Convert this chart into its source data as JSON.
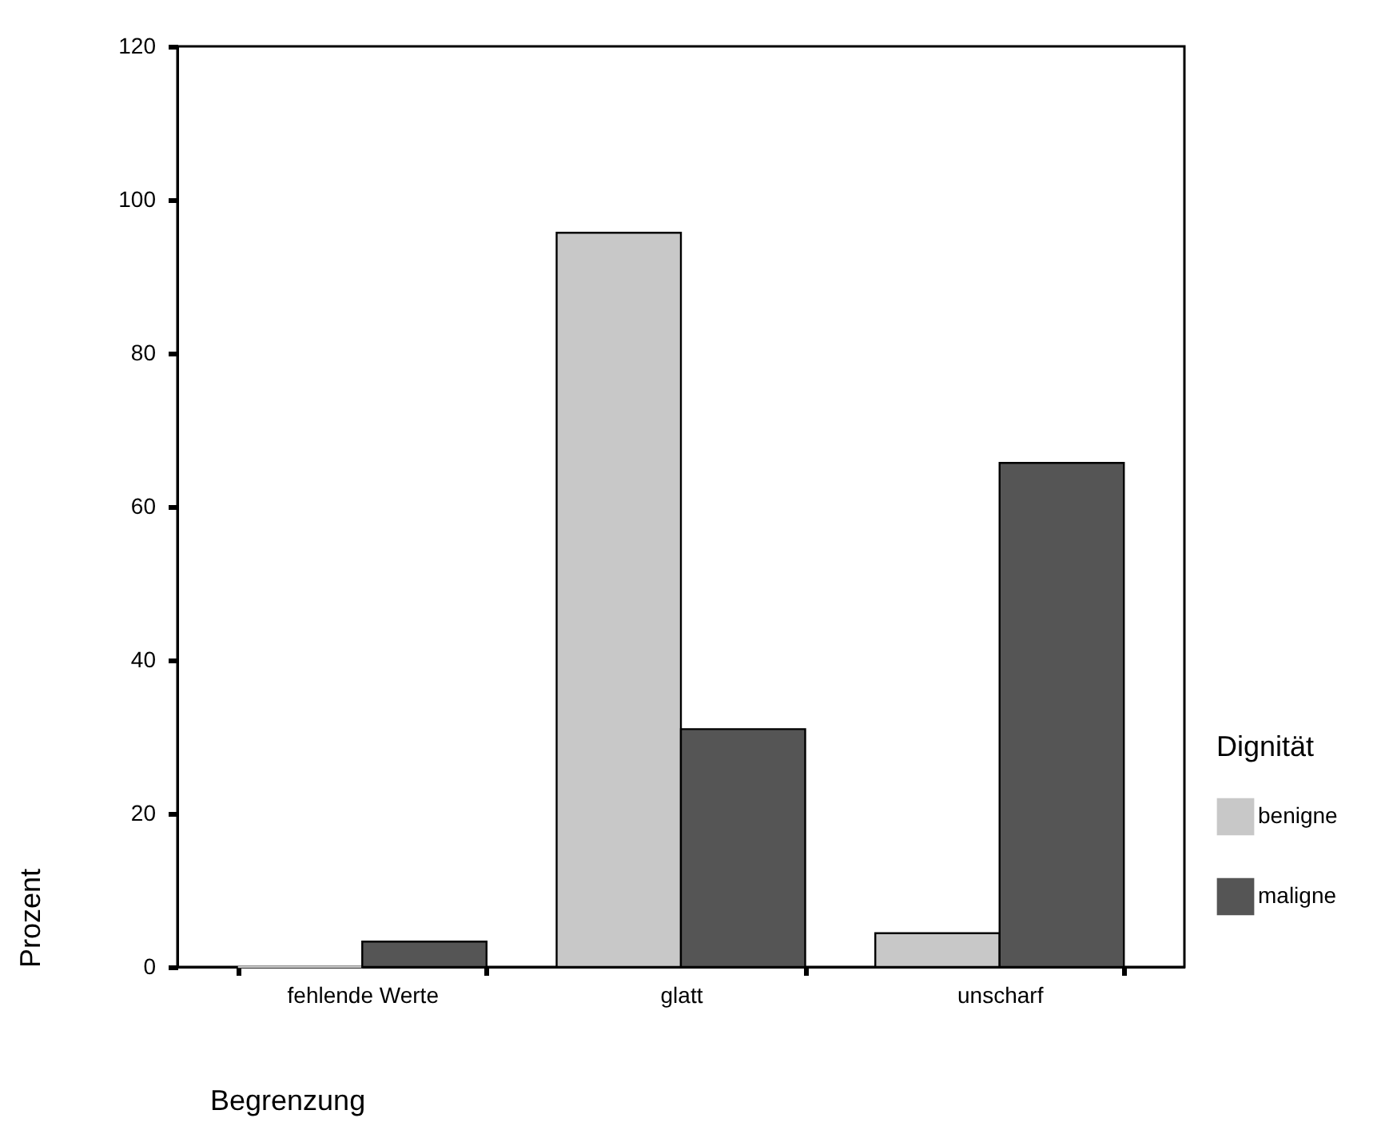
{
  "chart_data": {
    "type": "bar",
    "xlabel": "Begrenzung",
    "ylabel": "Prozent",
    "legend_title": "Dignität",
    "categories": [
      "fehlende Werte",
      "glatt",
      "unscharf"
    ],
    "series": [
      {
        "name": "benigne",
        "color": "#c8c8c8",
        "values": [
          0,
          95.7,
          4.4
        ]
      },
      {
        "name": "maligne",
        "color": "#555555",
        "values": [
          3.3,
          31.0,
          65.7
        ]
      }
    ],
    "ylim": [
      0,
      120
    ],
    "yticks": [
      0,
      20,
      40,
      60,
      80,
      100,
      120
    ],
    "grid": false,
    "legend": "right"
  }
}
